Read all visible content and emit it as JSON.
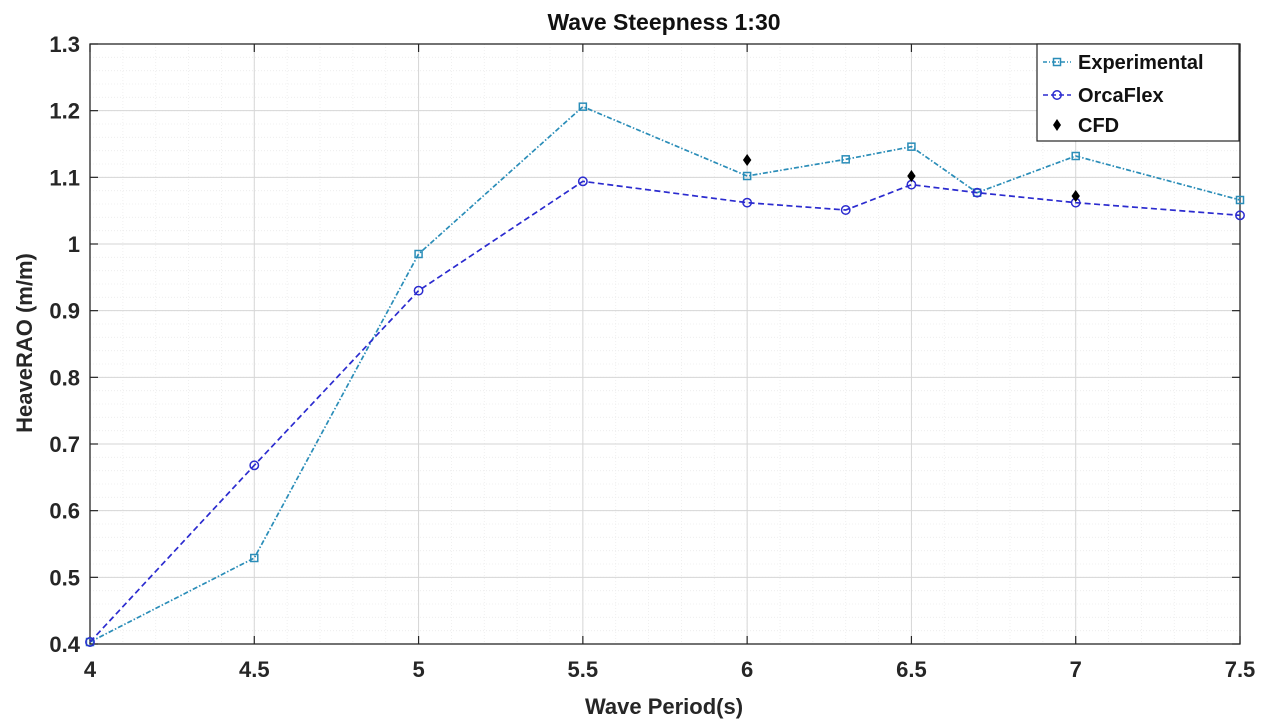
{
  "chart_data": {
    "type": "line",
    "title": "Wave Steepness 1:30",
    "xlabel": "Wave Period(s)",
    "ylabel": "HeaveRAO (m/m)",
    "xlim": [
      4,
      7.5
    ],
    "ylim": [
      0.4,
      1.3
    ],
    "xticks": [
      4,
      4.5,
      5,
      5.5,
      6,
      6.5,
      7,
      7.5
    ],
    "xtick_labels": [
      "4",
      "4.5",
      "5",
      "5.5",
      "6",
      "6.5",
      "7",
      "7.5"
    ],
    "yticks": [
      0.4,
      0.5,
      0.6,
      0.7,
      0.8,
      0.9,
      1.0,
      1.1,
      1.2,
      1.3
    ],
    "ytick_labels": [
      "0.4",
      "0.5",
      "0.6",
      "0.7",
      "0.8",
      "0.9",
      "1",
      "1.1",
      "1.2",
      "1.3"
    ],
    "grid": true,
    "minor_grid": true,
    "legend_position": "top-right",
    "series": [
      {
        "name": "Experimental",
        "color": "#2A8DB8",
        "marker": "square",
        "line": "dash-dot",
        "x": [
          4,
          4.5,
          5,
          5.5,
          6,
          6.3,
          6.5,
          6.7,
          7,
          7.5
        ],
        "y": [
          0.403,
          0.529,
          0.985,
          1.206,
          1.102,
          1.127,
          1.146,
          1.077,
          1.132,
          1.066
        ]
      },
      {
        "name": "OrcaFlex",
        "color": "#2B2BCF",
        "marker": "circle",
        "line": "dashed",
        "x": [
          4,
          4.5,
          5,
          5.5,
          6,
          6.3,
          6.5,
          6.7,
          7,
          7.5
        ],
        "y": [
          0.403,
          0.668,
          0.93,
          1.094,
          1.062,
          1.051,
          1.089,
          1.077,
          1.062,
          1.043
        ]
      },
      {
        "name": "CFD",
        "color": "#000000",
        "marker": "diamond",
        "line": "none",
        "x": [
          6,
          6.5,
          7
        ],
        "y": [
          1.126,
          1.102,
          1.072
        ]
      }
    ]
  }
}
